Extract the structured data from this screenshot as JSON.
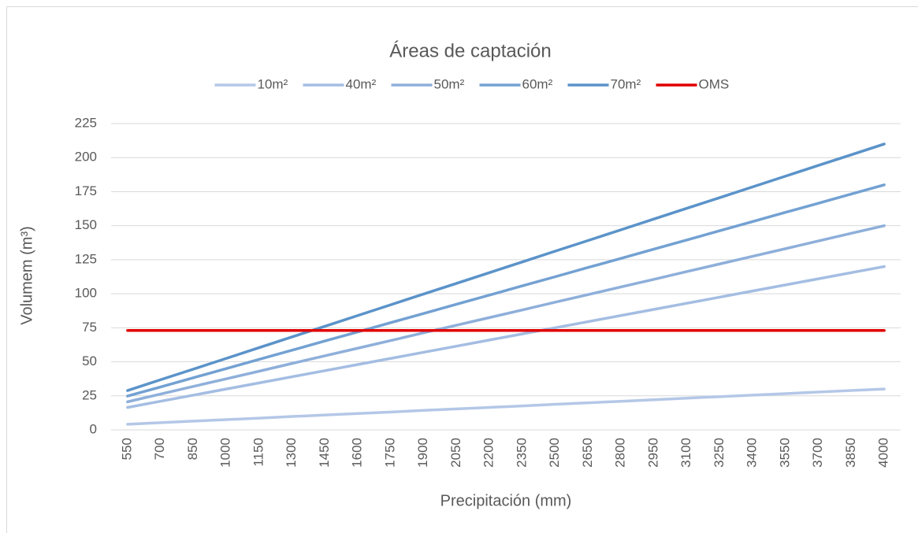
{
  "chart_data": {
    "type": "line",
    "title": "Áreas de captación",
    "x_label": "Precipitación (mm)",
    "y_label": "Volumem (m³)",
    "categories": [
      550,
      700,
      850,
      1000,
      1150,
      1300,
      1450,
      1600,
      1750,
      1900,
      2050,
      2200,
      2350,
      2500,
      2650,
      2800,
      2950,
      3100,
      3250,
      3400,
      3550,
      3700,
      3850,
      4000
    ],
    "series": [
      {
        "name": "10m²",
        "color": "#b4c7e7",
        "values": [
          4.1,
          5.3,
          6.4,
          7.5,
          8.6,
          9.8,
          10.9,
          12,
          13.1,
          14.3,
          15.4,
          16.5,
          17.6,
          18.8,
          19.9,
          21,
          22.1,
          23.3,
          24.4,
          25.5,
          26.6,
          27.8,
          28.9,
          30
        ]
      },
      {
        "name": "40m²",
        "color": "#a4bde2",
        "values": [
          16.5,
          21,
          25.5,
          30,
          34.5,
          39,
          43.5,
          48,
          52.5,
          57,
          61.5,
          66,
          70.5,
          75,
          79.5,
          84,
          88.5,
          93,
          97.5,
          102,
          106.5,
          111,
          115.5,
          120
        ]
      },
      {
        "name": "50m²",
        "color": "#8eafda",
        "values": [
          20.6,
          26.3,
          31.9,
          37.5,
          43.1,
          48.8,
          54.4,
          60,
          65.6,
          71.3,
          76.9,
          82.5,
          88.1,
          93.8,
          99.4,
          105,
          110.6,
          116.3,
          121.9,
          127.5,
          133.1,
          138.8,
          144.4,
          150
        ]
      },
      {
        "name": "60m²",
        "color": "#73a1d2",
        "values": [
          24.8,
          31.5,
          38.3,
          45,
          51.8,
          58.5,
          65.3,
          72,
          78.8,
          85.5,
          92.3,
          99,
          105.8,
          112.5,
          119.3,
          126,
          132.8,
          139.5,
          146.3,
          153,
          159.8,
          166.5,
          173.3,
          180
        ]
      },
      {
        "name": "70m²",
        "color": "#5b93c9",
        "values": [
          28.9,
          36.8,
          44.6,
          52.5,
          60.4,
          68.3,
          76.1,
          84,
          91.9,
          99.8,
          107.6,
          115.5,
          123.4,
          131.3,
          139.1,
          147,
          154.9,
          162.8,
          170.6,
          178.5,
          186.4,
          194.3,
          202.1,
          210
        ]
      },
      {
        "name": "OMS",
        "color": "#e00000",
        "values": [
          73,
          73,
          73,
          73,
          73,
          73,
          73,
          73,
          73,
          73,
          73,
          73,
          73,
          73,
          73,
          73,
          73,
          73,
          73,
          73,
          73,
          73,
          73,
          73
        ]
      }
    ],
    "ylim": [
      0,
      225
    ],
    "yticks": [
      0,
      25,
      50,
      75,
      100,
      125,
      150,
      175,
      200,
      225
    ],
    "grid": true,
    "legend": "top"
  }
}
